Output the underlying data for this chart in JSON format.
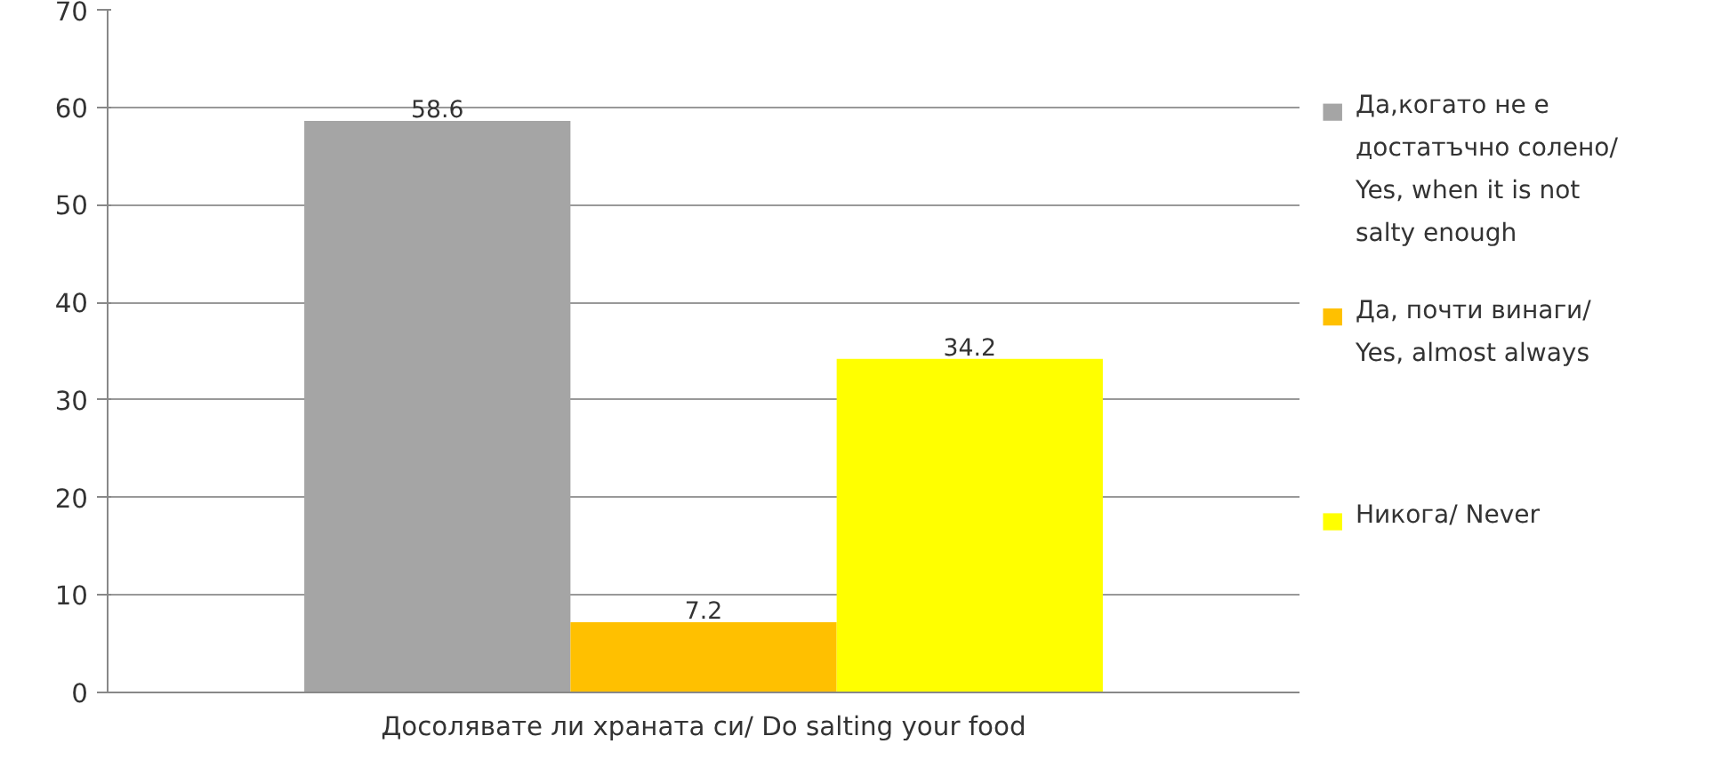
{
  "chart_data": {
    "type": "bar",
    "categories": [
      "Досолявате ли храната си/ Do salting your food"
    ],
    "series": [
      {
        "name": "Да,когато не е достатъчно солено/ Yes, when it is not salty enough",
        "color": "#a5a5a5",
        "values": [
          58.6
        ]
      },
      {
        "name": "Да, почти винаги/ Yes, almost always",
        "color": "#ffc000",
        "values": [
          7.2
        ]
      },
      {
        "name": "Никога/ Never",
        "color": "#ffff00",
        "values": [
          34.2
        ]
      }
    ],
    "ylim": [
      0,
      70
    ],
    "yticks": [
      0,
      10,
      20,
      30,
      40,
      50,
      60,
      70
    ],
    "grid": "y",
    "legend": "right",
    "data_labels": true
  }
}
